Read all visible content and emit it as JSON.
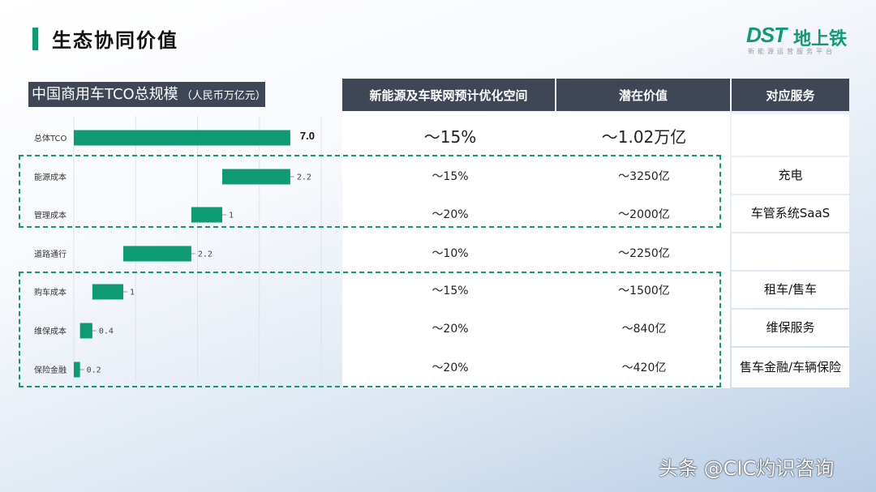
{
  "page": {
    "title": "生态协同价值"
  },
  "logo": {
    "mark": "DST",
    "name": "地上铁",
    "tagline": "新能源运营服务平台"
  },
  "chart_data": {
    "type": "bar",
    "title": "中国商用车TCO总规模",
    "unit": "（人民币万亿元）",
    "categories": [
      "总体TCO",
      "能源成本",
      "管理成本",
      "道路通行",
      "购车成本",
      "维保成本",
      "保险金融"
    ],
    "values": [
      7.0,
      2.2,
      1,
      2.2,
      1,
      0.4,
      0.2
    ],
    "value_labels": [
      "7.0",
      "2.2",
      "1",
      "2.2",
      "1",
      "0.4",
      "0.2"
    ],
    "offsets": [
      0,
      4.8,
      3.8,
      1.6,
      0.6,
      0.2,
      0
    ],
    "orientation": "horizontal",
    "style": "waterfall",
    "xlim": [
      0,
      8
    ],
    "grid": true,
    "bar_color": "#0e9a72"
  },
  "table": {
    "headers": [
      "新能源及车联网预计优化空间",
      "潜在价值",
      "对应服务"
    ],
    "rows": [
      {
        "saving": "～15%",
        "value": "～1.02万亿",
        "service": ""
      },
      {
        "saving": "～15%",
        "value": "～3250亿",
        "service": "充电"
      },
      {
        "saving": "～20%",
        "value": "～2000亿",
        "service": "车管系统SaaS"
      },
      {
        "saving": "～10%",
        "value": "～2250亿",
        "service": ""
      },
      {
        "saving": "～15%",
        "value": "～1500亿",
        "service": "租车/售车"
      },
      {
        "saving": "～20%",
        "value": "～840亿",
        "service": "维保服务"
      },
      {
        "saving": "～20%",
        "value": "～420亿",
        "service": "售车金融/车辆保险"
      }
    ]
  },
  "watermark": "头条 @CIC灼识咨询"
}
